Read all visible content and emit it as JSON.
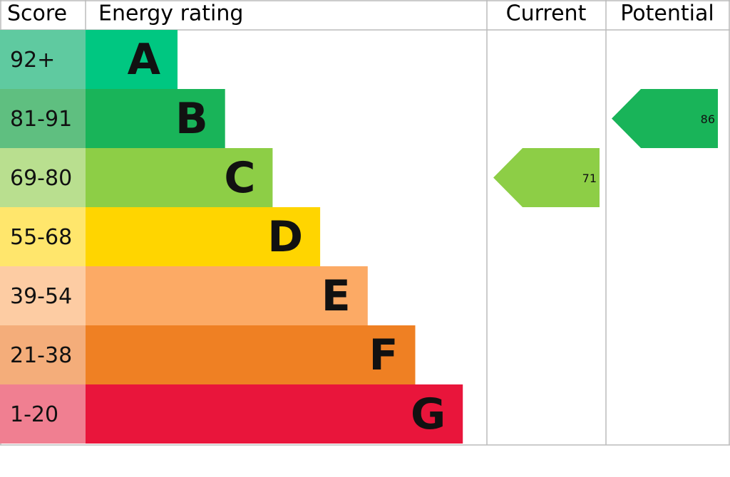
{
  "header": {
    "score": "Score",
    "rating": "Energy rating",
    "current": "Current",
    "potential": "Potential"
  },
  "bands": [
    {
      "score": "92+",
      "letter": "A",
      "color": "#00c781",
      "score_color": "#5fcaa0"
    },
    {
      "score": "81-91",
      "letter": "B",
      "color": "#19b459",
      "score_color": "#5fbf80"
    },
    {
      "score": "69-80",
      "letter": "C",
      "color": "#8dce46",
      "score_color": "#b9df8f"
    },
    {
      "score": "55-68",
      "letter": "D",
      "color": "#ffd500",
      "score_color": "#ffe66c"
    },
    {
      "score": "39-54",
      "letter": "E",
      "color": "#fcaa65",
      "score_color": "#fdcca3"
    },
    {
      "score": "21-38",
      "letter": "F",
      "color": "#ef8023",
      "score_color": "#f4ad7a"
    },
    {
      "score": "1-20",
      "letter": "G",
      "color": "#e9153b",
      "score_color": "#f07f91"
    }
  ],
  "current": 71,
  "potential": 86
}
